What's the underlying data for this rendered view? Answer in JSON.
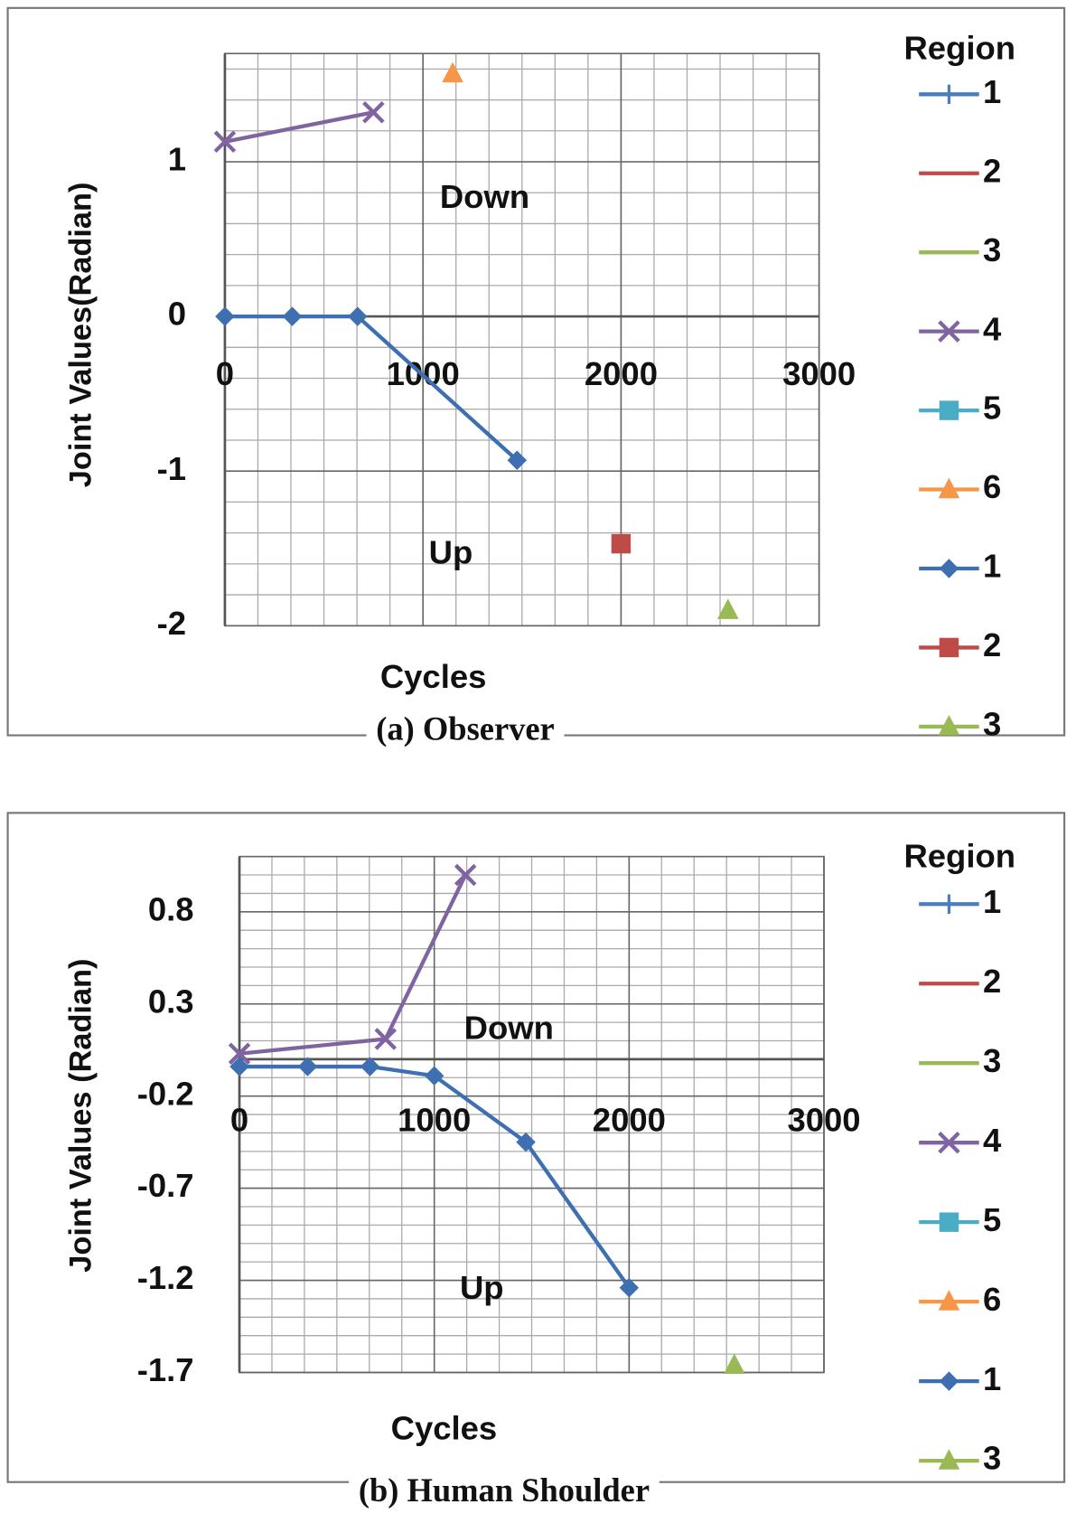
{
  "chart_data": [
    {
      "type": "line",
      "title": "(a) Observer",
      "xlabel": "Cycles",
      "ylabel": "Joint Values(Radian)",
      "legend_title": "Region",
      "annotations": [
        "Down",
        "Up"
      ],
      "grid": true,
      "xlim": [
        0,
        3000
      ],
      "xticks": [
        0,
        1000,
        2000,
        3000
      ],
      "ylim": [
        -2,
        1.7
      ],
      "yticks": [
        -2,
        -1,
        0,
        1
      ],
      "series": [
        {
          "name": "1",
          "color": "#4a7ebb",
          "marker": "plus",
          "x": [],
          "values": []
        },
        {
          "name": "2",
          "color": "#be4b48",
          "marker": "none",
          "x": [],
          "values": []
        },
        {
          "name": "3",
          "color": "#98b954",
          "marker": "none",
          "x": [],
          "values": []
        },
        {
          "name": "4",
          "color": "#8064a2",
          "marker": "x",
          "x": [
            0,
            750
          ],
          "values": [
            1.13,
            1.32
          ]
        },
        {
          "name": "5",
          "color": "#4bacc6",
          "marker": "square",
          "x": [],
          "values": []
        },
        {
          "name": "6",
          "color": "#f79646",
          "marker": "triangle",
          "x": [
            1150
          ],
          "values": [
            1.57
          ]
        },
        {
          "name": "1",
          "color": "#3e6fb0",
          "marker": "diamond",
          "x": [
            0,
            340,
            670,
            1475
          ],
          "values": [
            0,
            0,
            0,
            -0.93
          ]
        },
        {
          "name": "2",
          "color": "#be4b48",
          "marker": "square",
          "x": [
            2000
          ],
          "values": [
            -1.47
          ]
        },
        {
          "name": "3",
          "color": "#98b954",
          "marker": "triangle",
          "x": [
            2540
          ],
          "values": [
            -1.9
          ]
        }
      ]
    },
    {
      "type": "line",
      "title": "(b) Human Shoulder",
      "xlabel": "Cycles",
      "ylabel": "Joint Values (Radian)",
      "legend_title": "Region",
      "annotations": [
        "Down",
        "Up"
      ],
      "grid": true,
      "xlim": [
        0,
        3000
      ],
      "xticks": [
        0,
        1000,
        2000,
        3000
      ],
      "ylim": [
        -1.7,
        1.1
      ],
      "yticks": [
        -1.7,
        -1.2,
        -0.7,
        -0.2,
        0.3,
        0.8
      ],
      "series": [
        {
          "name": "1",
          "color": "#4a7ebb",
          "marker": "plus",
          "x": [],
          "values": []
        },
        {
          "name": "2",
          "color": "#be4b48",
          "marker": "none",
          "x": [],
          "values": []
        },
        {
          "name": "3",
          "color": "#98b954",
          "marker": "none",
          "x": [],
          "values": []
        },
        {
          "name": "4",
          "color": "#8064a2",
          "marker": "x",
          "x": [
            0,
            750,
            1160
          ],
          "values": [
            0.03,
            0.11,
            1.0
          ]
        },
        {
          "name": "5",
          "color": "#4bacc6",
          "marker": "square",
          "x": [],
          "values": []
        },
        {
          "name": "6",
          "color": "#f79646",
          "marker": "triangle",
          "x": [],
          "values": []
        },
        {
          "name": "1",
          "color": "#3e6fb0",
          "marker": "diamond",
          "x": [
            0,
            350,
            670,
            1000,
            1470,
            2000
          ],
          "values": [
            -0.04,
            -0.04,
            -0.04,
            -0.09,
            -0.45,
            -1.24
          ]
        },
        {
          "name": "3",
          "color": "#98b954",
          "marker": "triangle",
          "x": [
            2540
          ],
          "values": [
            -1.66
          ]
        }
      ]
    }
  ]
}
